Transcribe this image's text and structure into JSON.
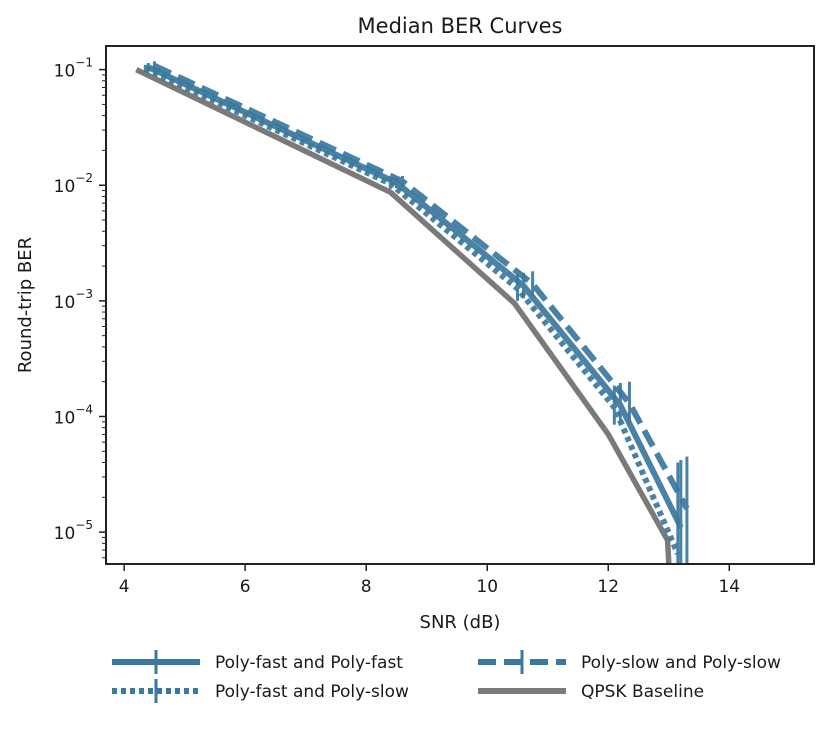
{
  "chart_data": {
    "type": "line",
    "title": "Median BER Curves",
    "xlabel": "SNR (dB)",
    "ylabel": "Round-trip BER",
    "xlim": [
      3.7,
      15.4
    ],
    "ylim": [
      5.3e-06,
      0.16
    ],
    "yscale": "log",
    "grid": false,
    "legend_position": "bottom",
    "x_ticks": [
      {
        "value": 4,
        "label": "4"
      },
      {
        "value": 6,
        "label": "6"
      },
      {
        "value": 8,
        "label": "8"
      },
      {
        "value": 10,
        "label": "10"
      },
      {
        "value": 12,
        "label": "12"
      },
      {
        "value": 14,
        "label": "14"
      }
    ],
    "y_ticks": [
      {
        "value": 0.1,
        "base": "10",
        "exp": "−1"
      },
      {
        "value": 0.01,
        "base": "10",
        "exp": "−2"
      },
      {
        "value": 0.001,
        "base": "10",
        "exp": "−3"
      },
      {
        "value": 0.0001,
        "base": "10",
        "exp": "−4"
      },
      {
        "value": 1e-05,
        "base": "10",
        "exp": "−5"
      }
    ],
    "series": [
      {
        "name": "Poly-fast and Poly-fast",
        "style": "solid",
        "color": "#3a789e",
        "x": [
          4.4,
          8.5,
          10.6,
          12.2,
          13.2
        ],
        "y": [
          0.105,
          0.0105,
          0.00135,
          0.000125,
          1.1e-05
        ],
        "yerr_low": [
          0.097,
          0.0094,
          0.00105,
          8.8e-05,
          5.3e-06
        ],
        "yerr_high": [
          0.114,
          0.0117,
          0.00175,
          0.000195,
          4.2e-05
        ]
      },
      {
        "name": "Poly-fast and Poly-slow",
        "style": "dotted",
        "color": "#3a789e",
        "x": [
          4.35,
          8.4,
          10.5,
          12.1,
          13.15
        ],
        "y": [
          0.102,
          0.0103,
          0.00128,
          0.00012,
          6.5e-06
        ],
        "yerr_low": [
          0.095,
          0.0093,
          0.001,
          8.5e-05,
          5.3e-06
        ],
        "yerr_high": [
          0.11,
          0.0115,
          0.0017,
          0.000185,
          4e-05
        ]
      },
      {
        "name": "Poly-slow and Poly-slow",
        "style": "dashed",
        "color": "#3a789e",
        "x": [
          4.5,
          8.6,
          10.75,
          12.35,
          13.3
        ],
        "y": [
          0.108,
          0.0108,
          0.0014,
          0.00013,
          1.6e-05
        ],
        "yerr_low": [
          0.099,
          0.0096,
          0.0011,
          9e-05,
          5.3e-06
        ],
        "yerr_high": [
          0.118,
          0.012,
          0.0018,
          0.0002,
          4.5e-05
        ]
      },
      {
        "name": "QPSK Baseline",
        "style": "solid",
        "color": "#7a7a7a",
        "x": [
          4.2,
          8.4,
          10.45,
          12.0,
          12.98,
          13.0
        ],
        "y": [
          0.1,
          0.0087,
          0.00095,
          7e-05,
          8.5e-06,
          5.3e-06
        ]
      }
    ]
  }
}
